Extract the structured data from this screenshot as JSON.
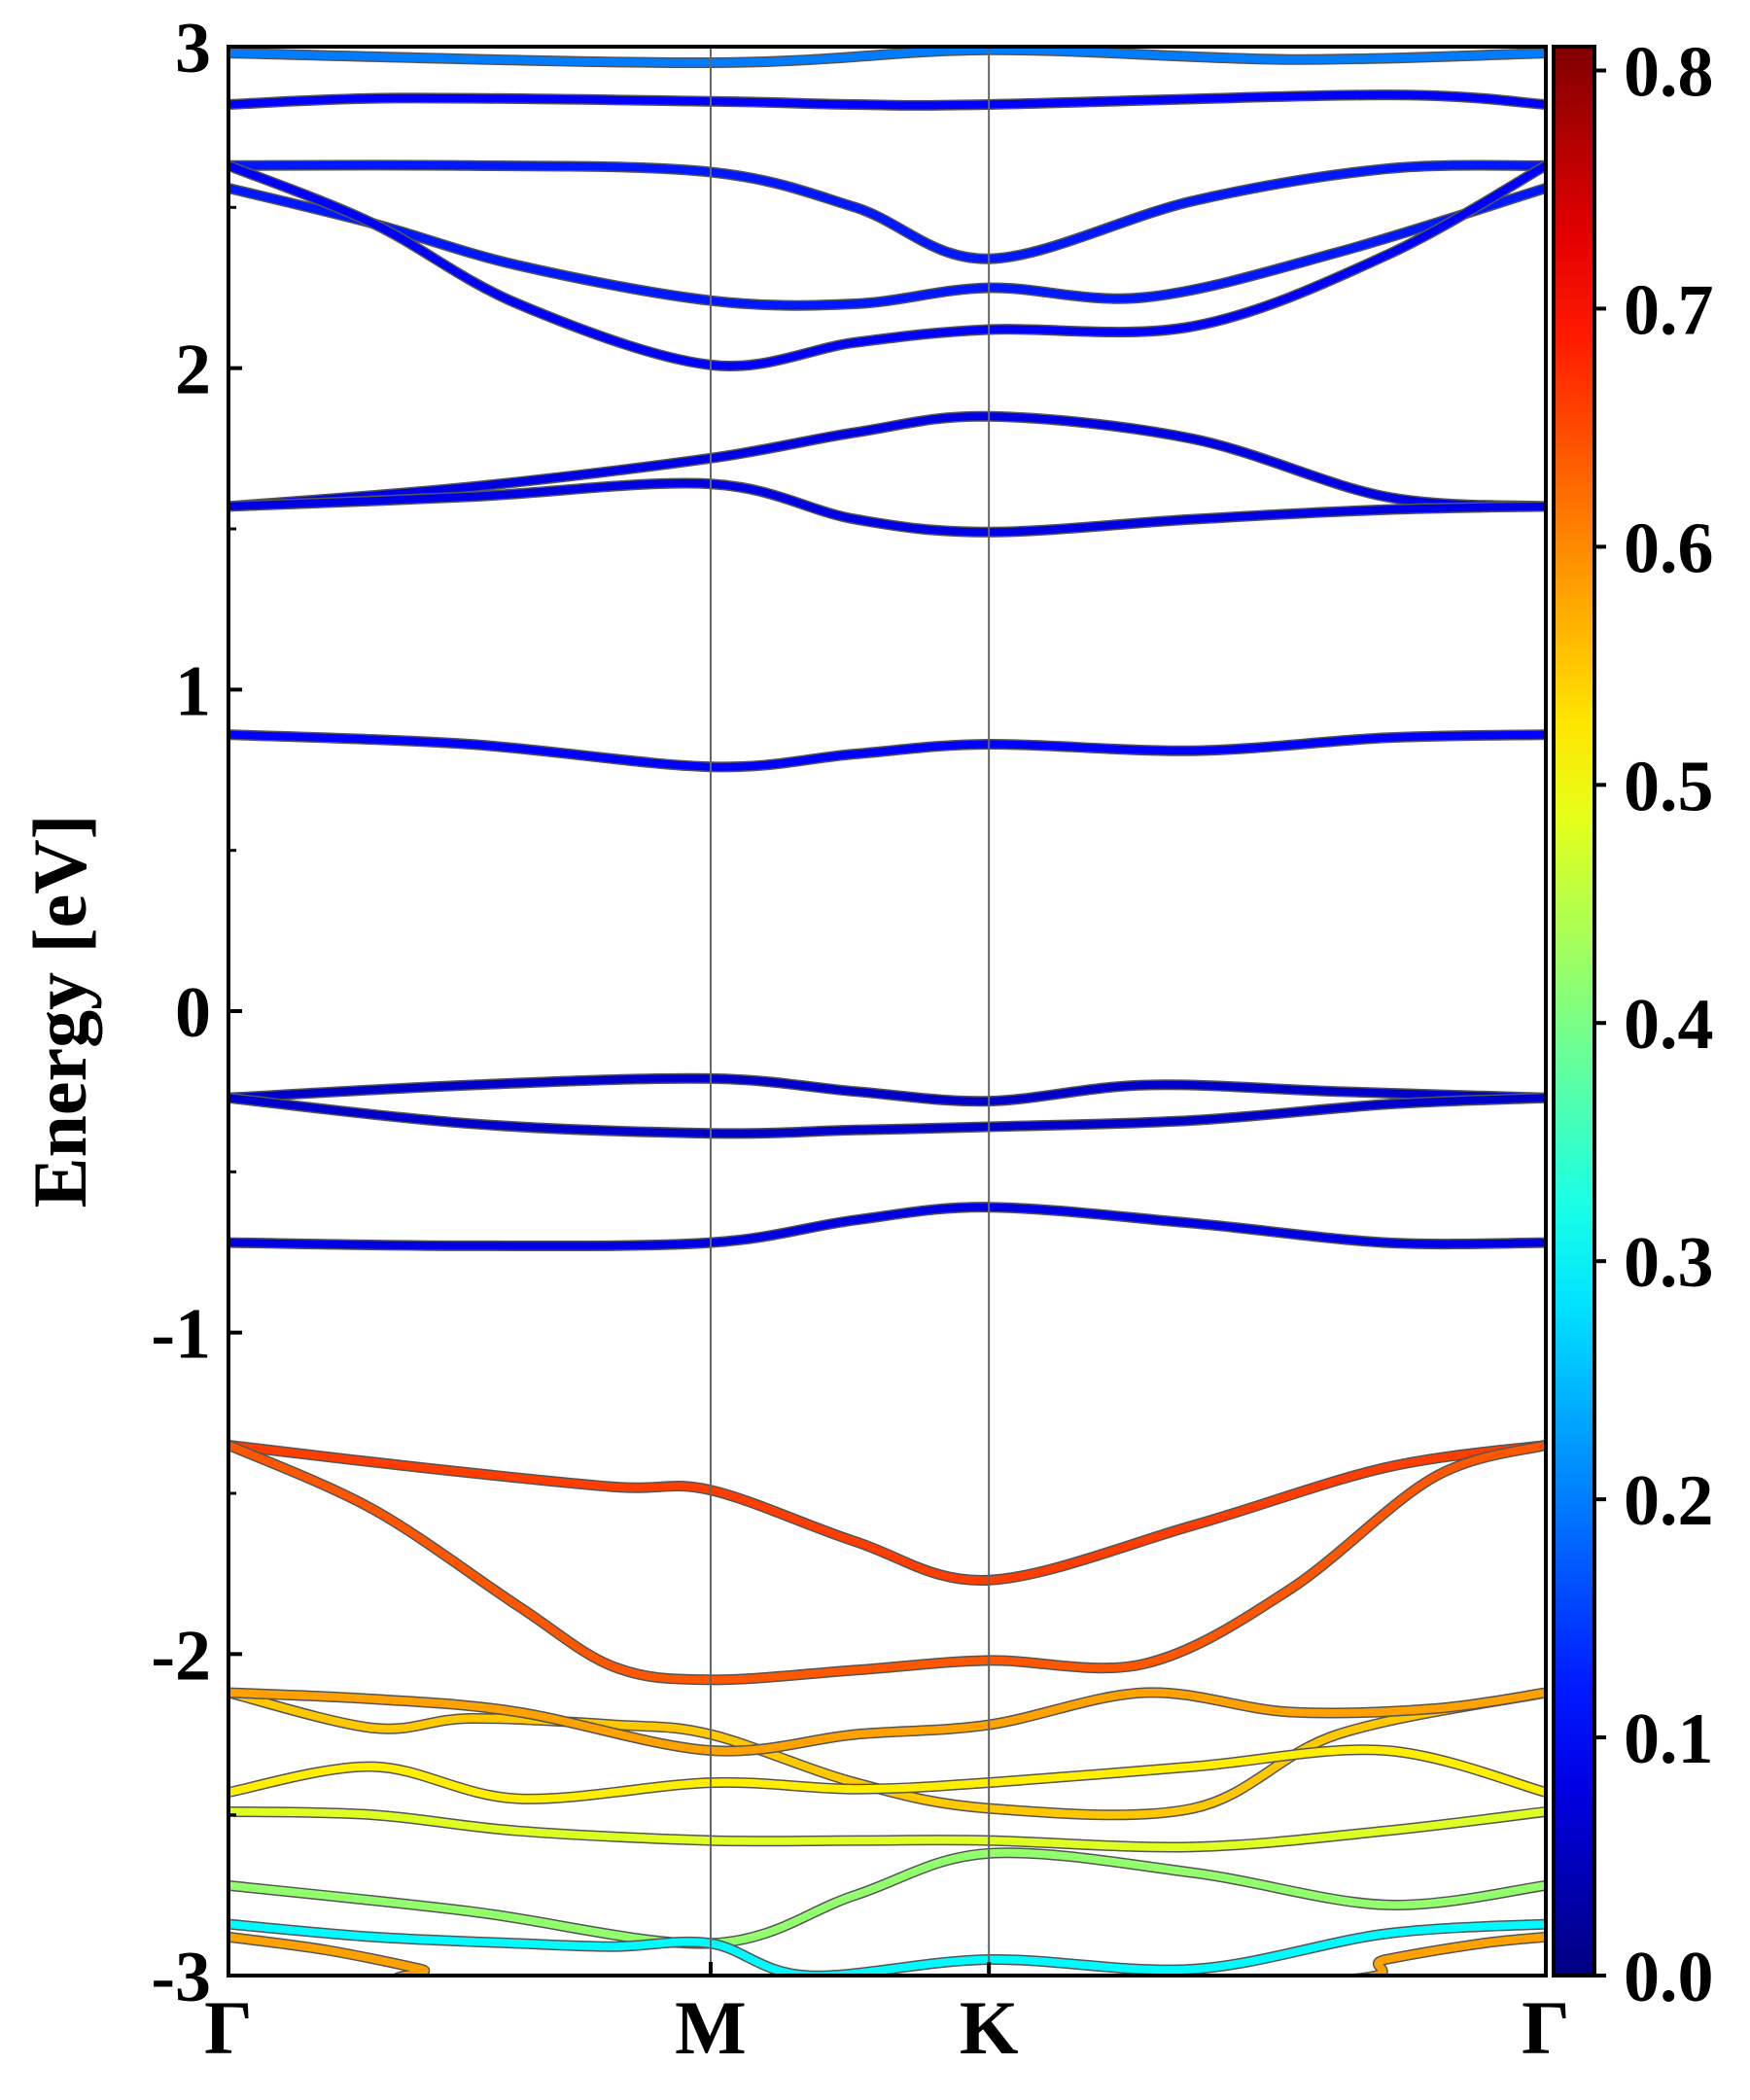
{
  "chart_data": {
    "type": "line",
    "title": "",
    "xlabel": "",
    "ylabel": "Energy [eV]",
    "ylim": [
      -3,
      3
    ],
    "xlim": [
      0,
      2.72
    ],
    "y_ticks": [
      "-3",
      "-2",
      "-1",
      "0",
      "1",
      "2",
      "3"
    ],
    "y_tick_values": [
      -3,
      -2,
      -1,
      0,
      1,
      2,
      3
    ],
    "k_points": [
      {
        "label": "Γ",
        "x": 0
      },
      {
        "label": "M",
        "x": 1.0
      },
      {
        "label": "K",
        "x": 1.577
      },
      {
        "label": "Γ",
        "x": 2.732
      }
    ],
    "grid": false,
    "colorbar": {
      "ticks": [
        "0.0",
        "0.1",
        "0.2",
        "0.3",
        "0.4",
        "0.5",
        "0.6",
        "0.7",
        "0.8"
      ],
      "tick_values": [
        0,
        0.1,
        0.2,
        0.3,
        0.4,
        0.5,
        0.6,
        0.7,
        0.8
      ],
      "range": [
        0,
        0.81
      ],
      "colormap": "jet"
    },
    "series": [
      {
        "weight": 0.2,
        "x": [
          0,
          1.0,
          1.577,
          2.2,
          2.732
        ],
        "y": [
          2.98,
          2.95,
          2.99,
          2.96,
          2.98
        ]
      },
      {
        "weight": 0.1,
        "x": [
          0,
          0.35,
          1.0,
          1.3,
          1.577,
          2.4,
          2.732
        ],
        "y": [
          2.82,
          2.84,
          2.83,
          2.82,
          2.82,
          2.85,
          2.82
        ]
      },
      {
        "weight": 0.12,
        "x": [
          0,
          0.5,
          1.0,
          1.3,
          1.577,
          2.0,
          2.4,
          2.732
        ],
        "y": [
          2.63,
          2.63,
          2.61,
          2.5,
          2.34,
          2.52,
          2.62,
          2.63
        ]
      },
      {
        "weight": 0.12,
        "x": [
          0,
          0.3,
          0.6,
          1.0,
          1.3,
          1.577,
          1.9,
          2.3,
          2.732
        ],
        "y": [
          2.56,
          2.45,
          2.32,
          2.21,
          2.2,
          2.25,
          2.22,
          2.36,
          2.56
        ]
      },
      {
        "weight": 0.1,
        "x": [
          0,
          0.3,
          0.6,
          1.0,
          1.3,
          1.577,
          2.0,
          2.4,
          2.732
        ],
        "y": [
          2.63,
          2.45,
          2.2,
          2.01,
          2.08,
          2.12,
          2.13,
          2.35,
          2.63
        ]
      },
      {
        "weight": 0.08,
        "x": [
          0,
          0.5,
          1.0,
          1.3,
          1.577,
          2.0,
          2.4,
          2.732
        ],
        "y": [
          1.57,
          1.63,
          1.72,
          1.8,
          1.85,
          1.78,
          1.6,
          1.57
        ]
      },
      {
        "weight": 0.08,
        "x": [
          0,
          0.5,
          1.0,
          1.3,
          1.577,
          2.0,
          2.4,
          2.732
        ],
        "y": [
          1.57,
          1.6,
          1.64,
          1.53,
          1.49,
          1.53,
          1.56,
          1.57
        ]
      },
      {
        "weight": 0.1,
        "x": [
          0,
          0.5,
          1.0,
          1.3,
          1.577,
          2.0,
          2.4,
          2.732
        ],
        "y": [
          0.86,
          0.83,
          0.76,
          0.8,
          0.83,
          0.81,
          0.85,
          0.86
        ]
      },
      {
        "weight": 0.06,
        "x": [
          0,
          0.5,
          1.0,
          1.3,
          1.577,
          1.9,
          2.3,
          2.732
        ],
        "y": [
          -0.27,
          -0.23,
          -0.21,
          -0.25,
          -0.28,
          -0.23,
          -0.25,
          -0.27
        ]
      },
      {
        "weight": 0.06,
        "x": [
          0,
          0.5,
          1.0,
          1.3,
          1.577,
          2.0,
          2.4,
          2.732
        ],
        "y": [
          -0.27,
          -0.35,
          -0.38,
          -0.37,
          -0.36,
          -0.34,
          -0.29,
          -0.27
        ]
      },
      {
        "weight": 0.08,
        "x": [
          0,
          0.5,
          1.0,
          1.3,
          1.577,
          2.0,
          2.4,
          2.732
        ],
        "y": [
          -0.72,
          -0.73,
          -0.72,
          -0.65,
          -0.61,
          -0.66,
          -0.72,
          -0.72
        ]
      },
      {
        "weight": 0.66,
        "x": [
          0,
          0.4,
          0.8,
          1.0,
          1.3,
          1.577,
          2.0,
          2.4,
          2.732
        ],
        "y": [
          -1.35,
          -1.42,
          -1.48,
          -1.49,
          -1.65,
          -1.77,
          -1.6,
          -1.42,
          -1.35
        ]
      },
      {
        "weight": 0.64,
        "x": [
          0,
          0.3,
          0.6,
          0.8,
          1.0,
          1.3,
          1.577,
          1.9,
          2.2,
          2.5,
          2.732
        ],
        "y": [
          -1.35,
          -1.55,
          -1.85,
          -2.04,
          -2.08,
          -2.05,
          -2.02,
          -2.03,
          -1.8,
          -1.45,
          -1.35
        ]
      },
      {
        "weight": 0.55,
        "x": [
          0,
          0.3,
          0.5,
          0.8,
          1.0,
          1.3,
          1.577,
          2.0,
          2.3,
          2.732
        ],
        "y": [
          -2.12,
          -2.23,
          -2.2,
          -2.22,
          -2.25,
          -2.4,
          -2.48,
          -2.48,
          -2.25,
          -2.12
        ]
      },
      {
        "weight": 0.58,
        "x": [
          0,
          0.3,
          0.6,
          1.0,
          1.3,
          1.577,
          1.9,
          2.2,
          2.5,
          2.732
        ],
        "y": [
          -2.12,
          -2.14,
          -2.18,
          -2.3,
          -2.25,
          -2.22,
          -2.12,
          -2.18,
          -2.17,
          -2.12
        ]
      },
      {
        "weight": 0.52,
        "x": [
          0,
          0.3,
          0.6,
          1.0,
          1.3,
          1.577,
          2.0,
          2.4,
          2.732
        ],
        "y": [
          -2.43,
          -2.35,
          -2.45,
          -2.4,
          -2.42,
          -2.4,
          -2.35,
          -2.3,
          -2.43
        ]
      },
      {
        "weight": 0.48,
        "x": [
          0,
          0.3,
          0.6,
          1.0,
          1.3,
          1.577,
          2.0,
          2.4,
          2.732
        ],
        "y": [
          -2.49,
          -2.5,
          -2.55,
          -2.58,
          -2.58,
          -2.58,
          -2.6,
          -2.55,
          -2.49
        ]
      },
      {
        "weight": 0.42,
        "x": [
          0,
          0.5,
          1.0,
          1.3,
          1.577,
          2.0,
          2.4,
          2.732
        ],
        "y": [
          -2.72,
          -2.8,
          -2.9,
          -2.75,
          -2.62,
          -2.68,
          -2.78,
          -2.72
        ]
      },
      {
        "weight": 0.3,
        "x": [
          0,
          0.3,
          0.6,
          0.8,
          1.0,
          1.2,
          1.577,
          2.0,
          2.4,
          2.732
        ],
        "y": [
          -2.84,
          -2.88,
          -2.9,
          -2.91,
          -2.9,
          -3.0,
          -2.95,
          -2.98,
          -2.87,
          -2.84
        ]
      },
      {
        "weight": 0.58,
        "x": [
          0,
          0.2,
          0.4,
          0.5,
          2.2,
          2.4,
          2.6,
          2.732
        ],
        "y": [
          -2.88,
          -2.92,
          -2.98,
          -3.02,
          -3.02,
          -2.95,
          -2.9,
          -2.88
        ]
      }
    ]
  }
}
